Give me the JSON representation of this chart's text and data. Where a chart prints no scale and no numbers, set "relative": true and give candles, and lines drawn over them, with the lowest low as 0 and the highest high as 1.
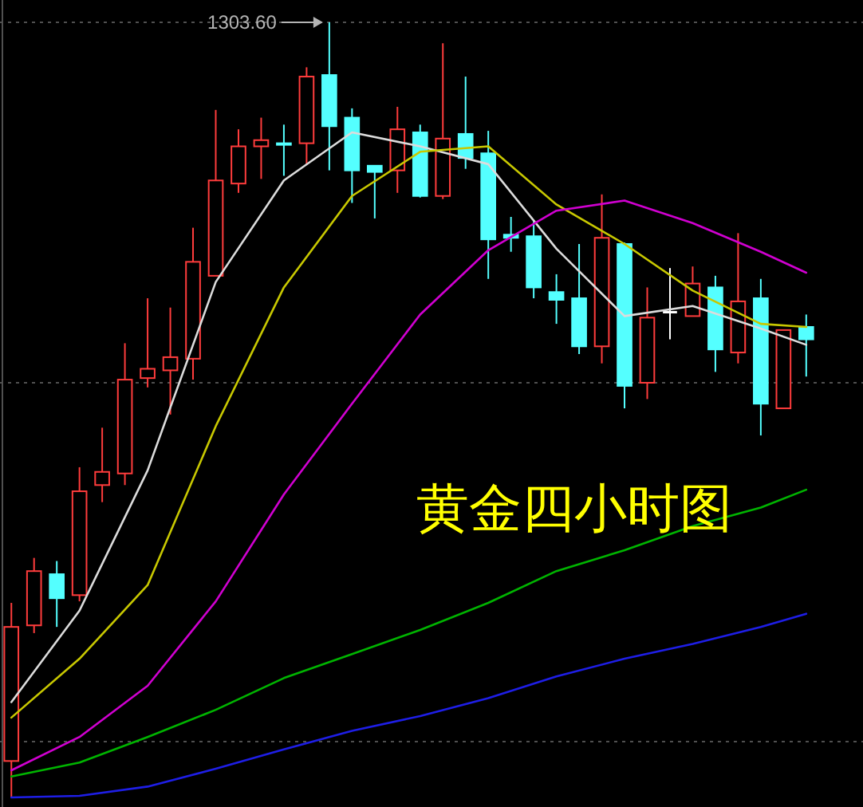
{
  "chart_data": {
    "type": "candlestick",
    "relative": true,
    "categories": [
      null,
      null,
      null,
      null,
      null,
      null,
      null,
      null,
      null,
      null,
      null,
      null,
      null,
      null,
      null,
      null,
      null,
      null,
      null,
      null,
      null,
      null,
      null,
      null,
      null,
      null,
      null,
      null,
      null,
      null,
      null,
      null,
      null,
      null,
      null,
      null
    ],
    "ohlc": [
      [
        0.047,
        0.251,
        0,
        0.22
      ],
      [
        0.222,
        0.309,
        0.212,
        0.292
      ],
      [
        0.288,
        0.305,
        0.22,
        0.257
      ],
      [
        0.261,
        0.426,
        0.253,
        0.395
      ],
      [
        0.403,
        0.477,
        0.381,
        0.42
      ],
      [
        0.418,
        0.586,
        0.403,
        0.539
      ],
      [
        0.541,
        0.644,
        0.529,
        0.553
      ],
      [
        0.551,
        0.632,
        0.494,
        0.568
      ],
      [
        0.566,
        0.735,
        0.539,
        0.691
      ],
      [
        0.673,
        0.887,
        0.673,
        0.796
      ],
      [
        0.792,
        0.862,
        0.78,
        0.84
      ],
      [
        0.84,
        0.877,
        0.798,
        0.848
      ],
      [
        0.844,
        0.868,
        0.802,
        0.842
      ],
      [
        0.844,
        0.942,
        0.817,
        0.93
      ],
      [
        0.932,
        1,
        0.809,
        0.866
      ],
      [
        0.877,
        0.889,
        0.767,
        0.809
      ],
      [
        0.815,
        0.815,
        0.747,
        0.807
      ],
      [
        0.809,
        0.891,
        0.78,
        0.862
      ],
      [
        0.858,
        0.868,
        0.774,
        0.776
      ],
      [
        0.776,
        0.973,
        0.772,
        0.85
      ],
      [
        0.856,
        0.93,
        0.811,
        0.825
      ],
      [
        0.831,
        0.86,
        0.669,
        0.72
      ],
      [
        0.726,
        0.749,
        0.704,
        0.722
      ],
      [
        0.724,
        0.745,
        0.644,
        0.658
      ],
      [
        0.652,
        0.675,
        0.611,
        0.642
      ],
      [
        0.644,
        0.714,
        0.572,
        0.582
      ],
      [
        0.582,
        0.778,
        0.56,
        0.722
      ],
      [
        0.714,
        0.716,
        0.502,
        0.531
      ],
      [
        0.535,
        0.658,
        0.514,
        0.619
      ],
      [
        0.626,
        0.683,
        0.591,
        0.626
      ],
      [
        0.621,
        0.685,
        0.621,
        0.663
      ],
      [
        0.658,
        0.673,
        0.549,
        0.578
      ],
      [
        0.574,
        0.728,
        0.56,
        0.64
      ],
      [
        0.644,
        0.669,
        0.467,
        0.508
      ],
      [
        0.502,
        0.603,
        0.502,
        0.603
      ],
      [
        0.607,
        0.623,
        0.543,
        0.591
      ]
    ],
    "series": [
      {
        "type": "line",
        "color": "#dcdcdc",
        "values": [
          0.123,
          null,
          null,
          0.241,
          null,
          null,
          0.422,
          null,
          null,
          0.665,
          null,
          null,
          0.796,
          null,
          null,
          0.858,
          null,
          null,
          0.84,
          null,
          null,
          0.817,
          null,
          null,
          0.708,
          null,
          null,
          0.621,
          null,
          null,
          0.634,
          null,
          null,
          0.605,
          null,
          0.584
        ]
      },
      {
        "type": "line",
        "color": "#c8c800",
        "values": [
          0.103,
          null,
          null,
          0.179,
          null,
          null,
          0.274,
          null,
          null,
          0.479,
          null,
          null,
          0.658,
          null,
          null,
          0.776,
          null,
          null,
          0.833,
          null,
          null,
          0.84,
          null,
          null,
          0.765,
          null,
          null,
          0.714,
          null,
          null,
          0.654,
          null,
          null,
          0.611,
          null,
          0.607
        ]
      },
      {
        "type": "line",
        "color": "#d000d0",
        "values": [
          0.035,
          null,
          null,
          0.078,
          null,
          null,
          0.144,
          null,
          null,
          0.253,
          null,
          null,
          0.391,
          null,
          null,
          0.508,
          null,
          null,
          0.623,
          null,
          null,
          0.706,
          null,
          null,
          0.757,
          null,
          null,
          0.77,
          null,
          null,
          0.741,
          null,
          null,
          0.704,
          null,
          0.677
        ]
      },
      {
        "type": "line",
        "color": "#00b400",
        "values": [
          0.027,
          null,
          null,
          0.045,
          null,
          null,
          0.078,
          null,
          null,
          0.113,
          null,
          null,
          0.154,
          null,
          null,
          0.185,
          null,
          null,
          0.216,
          null,
          null,
          0.251,
          null,
          null,
          0.292,
          null,
          null,
          0.319,
          null,
          null,
          0.35,
          null,
          null,
          0.374,
          null,
          0.397
        ]
      },
      {
        "type": "line",
        "color": "#1e1ee6",
        "values": [
          0,
          null,
          null,
          0.002,
          null,
          null,
          0.014,
          null,
          null,
          0.037,
          null,
          null,
          0.062,
          null,
          null,
          0.086,
          null,
          null,
          0.105,
          null,
          null,
          0.128,
          null,
          null,
          0.156,
          null,
          null,
          0.179,
          null,
          null,
          0.198,
          null,
          null,
          0.22,
          null,
          0.237
        ]
      }
    ],
    "ref_lines": [
      {
        "axis": "y",
        "value": 1,
        "line_style": "dotted",
        "color": "#505050"
      },
      {
        "axis": "y",
        "value": 0.535,
        "line_style": "dotted",
        "color": "#505050"
      },
      {
        "axis": "y",
        "value": 0.072,
        "line_style": "dotted",
        "color": "#505050"
      }
    ],
    "annotations": [
      "1303.60",
      "黄金四小时图"
    ]
  }
}
